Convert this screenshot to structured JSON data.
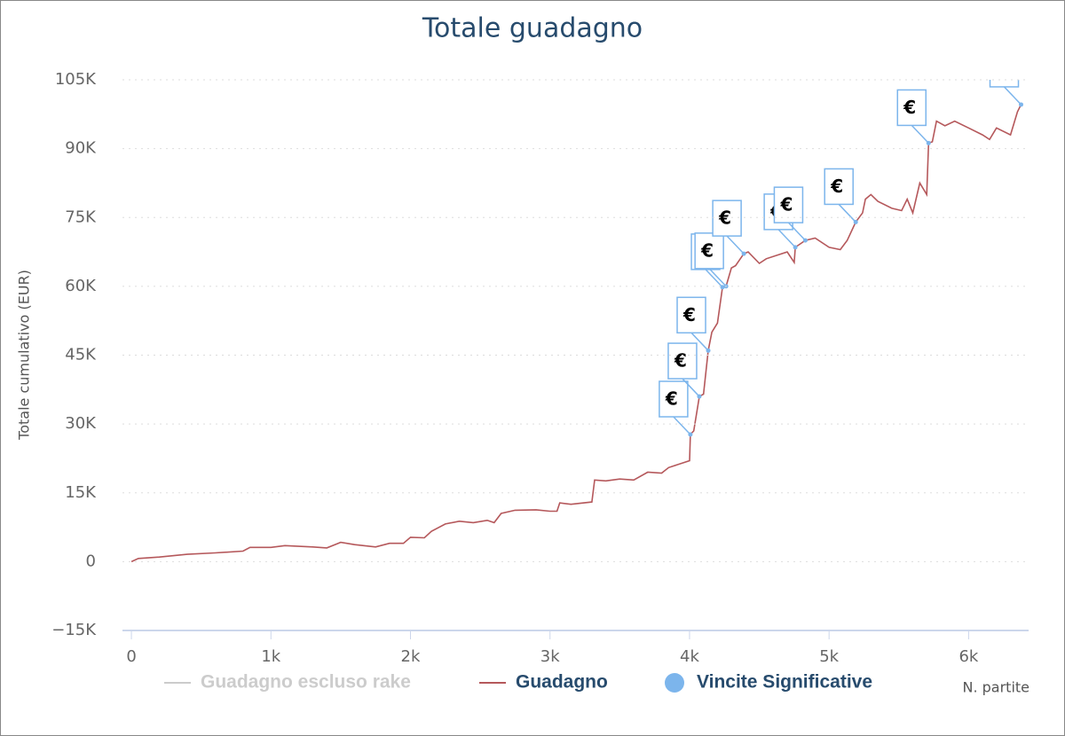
{
  "chart_data": {
    "type": "line",
    "title": "Totale guadagno",
    "y_label": "Totale cumulativo (EUR)",
    "x_label": "N. partite",
    "xlim": [
      -64,
      6430
    ],
    "ylim": [
      -15000,
      105000
    ],
    "xticks": [
      0,
      {
        "value": 1000,
        "label": "1k"
      },
      {
        "value": 2000,
        "label": "2k"
      },
      {
        "value": 3000,
        "label": "3k"
      },
      {
        "value": 4000,
        "label": "4k"
      },
      {
        "value": 5000,
        "label": "5k"
      },
      {
        "value": 6000,
        "label": "6k"
      }
    ],
    "yticks": [
      {
        "value": -15000,
        "label": "−15K"
      },
      0,
      {
        "value": 15000,
        "label": "15K"
      },
      {
        "value": 30000,
        "label": "30K"
      },
      {
        "value": 45000,
        "label": "45K"
      },
      {
        "value": 60000,
        "label": "60K"
      },
      {
        "value": 75000,
        "label": "75K"
      },
      {
        "value": 90000,
        "label": "90K"
      },
      {
        "value": 105000,
        "label": "105K"
      }
    ],
    "grid": true,
    "series": [
      {
        "name": "Guadagno escluso rake",
        "color": "#cccccc",
        "visible": false
      },
      {
        "name": "Guadagno",
        "color": "#b5585b",
        "x": [
          0,
          50,
          200,
          400,
          600,
          800,
          850,
          1000,
          1100,
          1300,
          1400,
          1500,
          1600,
          1750,
          1850,
          1950,
          2000,
          2100,
          2150,
          2250,
          2350,
          2450,
          2550,
          2600,
          2650,
          2750,
          2900,
          3000,
          3050,
          3070,
          3150,
          3300,
          3320,
          3400,
          3500,
          3600,
          3700,
          3800,
          3850,
          3950,
          4000,
          4006,
          4030,
          4070,
          4100,
          4134,
          4160,
          4200,
          4236,
          4262,
          4300,
          4330,
          4389,
          4420,
          4500,
          4550,
          4700,
          4750,
          4758,
          4830,
          4900,
          5000,
          5080,
          5130,
          5191,
          5240,
          5260,
          5300,
          5350,
          5450,
          5520,
          5560,
          5600,
          5650,
          5700,
          5713,
          5740,
          5770,
          5830,
          5900,
          6000,
          6100,
          6150,
          6200,
          6300,
          6350,
          6376
        ],
        "values": [
          0,
          700,
          1000,
          1600,
          1900,
          2300,
          3100,
          3100,
          3500,
          3200,
          3000,
          4200,
          3700,
          3200,
          4000,
          4000,
          5300,
          5200,
          6600,
          8200,
          8800,
          8500,
          9000,
          8500,
          10500,
          11200,
          11300,
          11000,
          11000,
          12800,
          12500,
          13000,
          17800,
          17600,
          18000,
          17800,
          19500,
          19300,
          20500,
          21500,
          22000,
          27700,
          28500,
          36000,
          36500,
          46000,
          50000,
          52000,
          59800,
          60000,
          64000,
          64500,
          67100,
          67500,
          65000,
          66000,
          67500,
          65200,
          68500,
          70000,
          70500,
          68500,
          68000,
          70000,
          74000,
          76000,
          79000,
          80000,
          78500,
          77000,
          76500,
          79000,
          76000,
          82500,
          80000,
          91200,
          91500,
          96000,
          95000,
          96000,
          94500,
          93000,
          92000,
          94500,
          93000,
          98000,
          99600
        ]
      },
      {
        "name": "Vincite Significative",
        "type": "flags",
        "color": "#7cb5ec",
        "title": "€",
        "x": [
          4006,
          4070,
          4134,
          4236,
          4262,
          4389,
          4758,
          4830,
          5191,
          5713,
          6376
        ],
        "values": [
          27700,
          36000,
          46000,
          59800,
          60000,
          67100,
          68500,
          70000,
          74000,
          91200,
          99600
        ]
      }
    ]
  }
}
